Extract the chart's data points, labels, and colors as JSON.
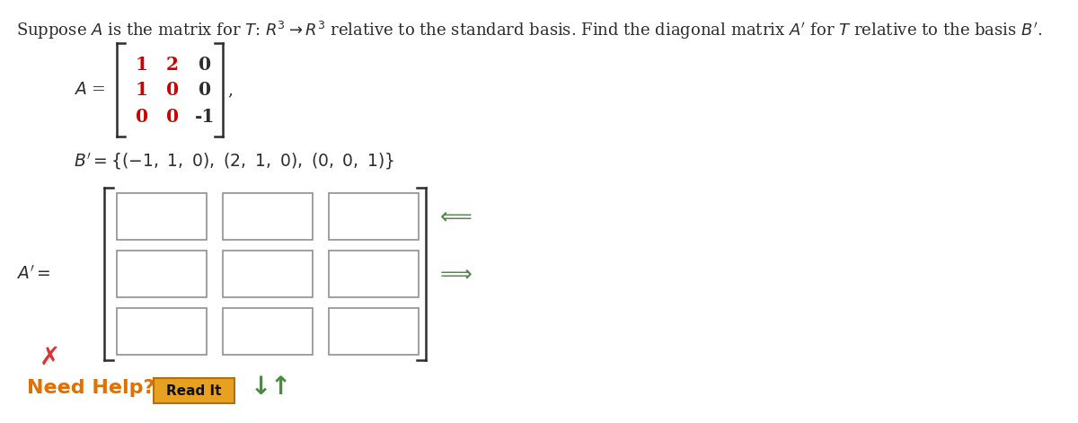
{
  "bg_color": "#ffffff",
  "text_color": "#2d2d2d",
  "red_color": "#cc0000",
  "green_color": "#4a8c3f",
  "need_help_color": "#e07000",
  "read_it_bg": "#e8a020",
  "read_it_border": "#b07010",
  "x_color": "#e03030",
  "title_fontsize": 13.0,
  "body_fontsize": 13.5,
  "matrix_fontsize": 14.5,
  "matrix_A": [
    [
      1,
      2,
      0
    ],
    [
      1,
      0,
      0
    ],
    [
      0,
      0,
      -1
    ]
  ],
  "matrix_A_red_cols": [
    0,
    1
  ],
  "basis_text": "B’ = {(−1, 1, 0), (2, 1, 0), (0, 0, 1)}",
  "n_rows": 3,
  "n_cols": 3
}
